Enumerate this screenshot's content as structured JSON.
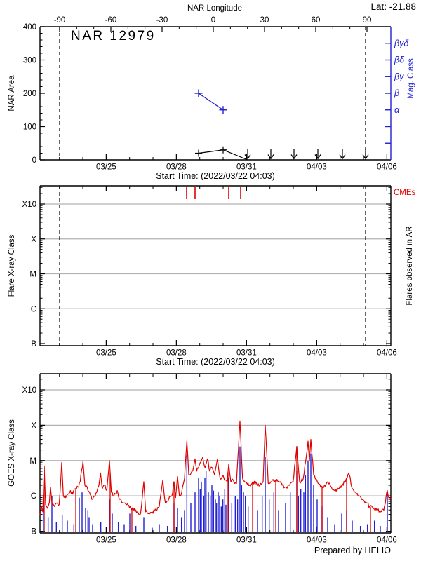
{
  "labels": {
    "lat": "Lat: -21.88",
    "title": "NAR 12979",
    "top_axis_title": "NAR Longitude",
    "nar_area_axis": "NAR Area",
    "mag_class_axis": "Mag. Class",
    "start_time": "Start Time: (2022/03/22 04:03)",
    "flare_axis": "Flare X-ray Class",
    "flares_in_ar_axis": "Flares observed in AR",
    "cmes": "CMEs",
    "goes_axis": "GOES X-ray Class",
    "prepared_by": "Prepared by HELIO"
  },
  "colors": {
    "red": "#e10000",
    "blue": "#2121d2",
    "grid": "#b2b2b2",
    "axis": "#000000"
  },
  "time_axis": {
    "start_label": "Start Time: (2022/03/22 04:03)",
    "days_total": 15,
    "major_ticks": [
      {
        "day": 2.831,
        "label": "03/25"
      },
      {
        "day": 5.831,
        "label": "03/28"
      },
      {
        "day": 8.831,
        "label": "03/31"
      },
      {
        "day": 11.831,
        "label": "04/03"
      },
      {
        "day": 14.831,
        "label": "04/06"
      }
    ],
    "minor_offset_days": 0.831,
    "minor_step_days": 1
  },
  "chart_data": {
    "panel1": {
      "type": "line",
      "title": "NAR 12979",
      "ylabel": "NAR Area",
      "ylim": [
        0,
        400
      ],
      "yticks": [
        0,
        100,
        200,
        300,
        400
      ],
      "y_minor_step": 20,
      "top_axis": {
        "label": "NAR Longitude",
        "ticks": [
          -90,
          -60,
          -30,
          0,
          30,
          60,
          90
        ],
        "minor_step": 10,
        "day_at_minus90": 0.84,
        "day_at_plus90": 13.98
      },
      "dashed_lines_days": [
        0.84,
        13.92
      ],
      "mag_axis": {
        "label": "Mag. Class",
        "ticks": [
          {
            "area": 350,
            "label": "βγδ"
          },
          {
            "area": 300,
            "label": "βδ"
          },
          {
            "area": 250,
            "label": "βγ"
          },
          {
            "area": 200,
            "label": "β"
          },
          {
            "area": 150,
            "label": "α"
          },
          {
            "area": 100,
            "label": ""
          },
          {
            "area": 50,
            "label": ""
          }
        ]
      },
      "mag_points": [
        {
          "day": 6.78,
          "area_equiv": 200,
          "class": "β"
        },
        {
          "day": 7.83,
          "area_equiv": 150,
          "class": "α"
        }
      ],
      "area_points": [
        {
          "day": 6.78,
          "area": 20
        },
        {
          "day": 7.83,
          "area": 30
        },
        {
          "day": 8.88,
          "area": 0
        }
      ],
      "area_upper_limit_days": [
        8.88,
        9.87,
        10.86,
        11.88,
        12.93,
        13.92
      ]
    },
    "panel2": {
      "type": "event-ticks",
      "ylabel": "Flare X-ray Class",
      "right_label": "Flares observed in AR",
      "yticks": [
        {
          "label": "X10",
          "log": -3
        },
        {
          "label": "X",
          "log": -4
        },
        {
          "label": "M",
          "log": -5
        },
        {
          "label": "C",
          "log": -6
        },
        {
          "label": "B",
          "log": -7
        }
      ],
      "gridline_logs": [
        -3,
        -4,
        -5,
        -6
      ],
      "dashed_lines_days": [
        0.84,
        13.92
      ],
      "cme_event_days": [
        6.27,
        6.63,
        8.07,
        8.58
      ],
      "flares": []
    },
    "panel3": {
      "type": "line",
      "ylabel": "GOES X-ray Class",
      "yticks": [
        {
          "label": "X10",
          "log": -3
        },
        {
          "label": "X",
          "log": -4
        },
        {
          "label": "M",
          "log": -5
        },
        {
          "label": "C",
          "log": -6
        },
        {
          "label": "B",
          "log": -7
        }
      ],
      "gridline_logs": [
        -3,
        -4,
        -5,
        -6
      ],
      "noise_amplitude": 0.055,
      "red_series": [
        [
          0.0,
          -6.55
        ],
        [
          0.06,
          -6.3
        ],
        [
          0.12,
          -6.45
        ],
        [
          0.18,
          -5.15
        ],
        [
          0.24,
          -6.25
        ],
        [
          0.32,
          -6.35
        ],
        [
          0.4,
          -6.2
        ],
        [
          0.45,
          -5.75
        ],
        [
          0.52,
          -6.25
        ],
        [
          0.62,
          -6.3
        ],
        [
          0.72,
          -6.2
        ],
        [
          0.82,
          -6.25
        ],
        [
          0.93,
          -5.05
        ],
        [
          1.0,
          -6.0
        ],
        [
          1.1,
          -6.05
        ],
        [
          1.2,
          -5.95
        ],
        [
          1.3,
          -5.85
        ],
        [
          1.4,
          -5.95
        ],
        [
          1.5,
          -5.8
        ],
        [
          1.62,
          -5.75
        ],
        [
          1.72,
          -5.6
        ],
        [
          1.84,
          -5.02
        ],
        [
          1.92,
          -5.7
        ],
        [
          2.02,
          -5.75
        ],
        [
          2.12,
          -5.9
        ],
        [
          2.22,
          -6.1
        ],
        [
          2.32,
          -6.0
        ],
        [
          2.42,
          -5.9
        ],
        [
          2.52,
          -5.7
        ],
        [
          2.59,
          -5.35
        ],
        [
          2.66,
          -5.8
        ],
        [
          2.76,
          -5.7
        ],
        [
          2.86,
          -5.85
        ],
        [
          2.97,
          -5.0
        ],
        [
          3.05,
          -5.9
        ],
        [
          3.16,
          -6.0
        ],
        [
          3.3,
          -5.85
        ],
        [
          3.42,
          -6.1
        ],
        [
          3.56,
          -6.2
        ],
        [
          3.7,
          -6.25
        ],
        [
          3.86,
          -6.3
        ],
        [
          4.0,
          -6.4
        ],
        [
          4.16,
          -6.45
        ],
        [
          4.3,
          -6.5
        ],
        [
          4.44,
          -5.6
        ],
        [
          4.52,
          -6.45
        ],
        [
          4.66,
          -6.5
        ],
        [
          4.8,
          -6.45
        ],
        [
          4.96,
          -6.4
        ],
        [
          5.1,
          -6.3
        ],
        [
          5.25,
          -5.55
        ],
        [
          5.36,
          -6.2
        ],
        [
          5.5,
          -6.1
        ],
        [
          5.64,
          -6.0
        ],
        [
          5.73,
          -5.6
        ],
        [
          5.8,
          -6.05
        ],
        [
          5.88,
          -5.45
        ],
        [
          5.96,
          -6.0
        ],
        [
          6.06,
          -5.9
        ],
        [
          6.18,
          -5.5
        ],
        [
          6.28,
          -4.45
        ],
        [
          6.36,
          -5.4
        ],
        [
          6.46,
          -5.35
        ],
        [
          6.56,
          -5.2
        ],
        [
          6.63,
          -4.95
        ],
        [
          6.7,
          -5.3
        ],
        [
          6.8,
          -5.15
        ],
        [
          6.9,
          -5.0
        ],
        [
          6.96,
          -4.9
        ],
        [
          7.06,
          -5.2
        ],
        [
          7.16,
          -4.95
        ],
        [
          7.26,
          -5.3
        ],
        [
          7.36,
          -5.2
        ],
        [
          7.46,
          -5.4
        ],
        [
          7.59,
          -4.95
        ],
        [
          7.7,
          -5.5
        ],
        [
          7.8,
          -5.45
        ],
        [
          7.92,
          -5.55
        ],
        [
          8.0,
          -5.6
        ],
        [
          8.07,
          -5.1
        ],
        [
          8.16,
          -5.6
        ],
        [
          8.26,
          -5.55
        ],
        [
          8.4,
          -5.65
        ],
        [
          8.55,
          -3.88
        ],
        [
          8.66,
          -5.5
        ],
        [
          8.8,
          -5.6
        ],
        [
          8.96,
          -5.7
        ],
        [
          9.1,
          -5.6
        ],
        [
          9.26,
          -5.65
        ],
        [
          9.4,
          -5.7
        ],
        [
          9.54,
          -5.6
        ],
        [
          9.63,
          -4.0
        ],
        [
          9.76,
          -5.65
        ],
        [
          9.9,
          -5.6
        ],
        [
          10.06,
          -5.55
        ],
        [
          10.2,
          -5.6
        ],
        [
          10.36,
          -5.7
        ],
        [
          10.5,
          -5.75
        ],
        [
          10.66,
          -5.7
        ],
        [
          10.82,
          -5.6
        ],
        [
          10.98,
          -4.6
        ],
        [
          11.1,
          -5.6
        ],
        [
          11.26,
          -5.5
        ],
        [
          11.46,
          -4.45
        ],
        [
          11.52,
          -5.0
        ],
        [
          11.58,
          -4.4
        ],
        [
          11.7,
          -5.4
        ],
        [
          11.86,
          -5.6
        ],
        [
          12.0,
          -5.75
        ],
        [
          12.16,
          -5.7
        ],
        [
          12.3,
          -5.6
        ],
        [
          12.46,
          -5.75
        ],
        [
          12.6,
          -5.85
        ],
        [
          12.76,
          -5.8
        ],
        [
          12.9,
          -5.7
        ],
        [
          13.06,
          -5.6
        ],
        [
          13.2,
          -5.35
        ],
        [
          13.36,
          -5.8
        ],
        [
          13.5,
          -5.9
        ],
        [
          13.66,
          -6.0
        ],
        [
          13.8,
          -6.1
        ],
        [
          13.96,
          -6.2
        ],
        [
          14.1,
          -6.3
        ],
        [
          14.26,
          -6.35
        ],
        [
          14.4,
          -6.4
        ],
        [
          14.56,
          -6.45
        ],
        [
          14.7,
          -6.4
        ],
        [
          14.85,
          -5.85
        ],
        [
          14.95,
          -6.1
        ],
        [
          15.0,
          -6.05
        ]
      ],
      "red_dropout_days": [
        0.18,
        1.53,
        3.0,
        3.93,
        5.73,
        8.04,
        9.09,
        10.08,
        10.98,
        12.06,
        13.11,
        14.13
      ],
      "blue_spikes": [
        [
          0.15,
          -5.95
        ],
        [
          0.35,
          -6.6
        ],
        [
          0.51,
          -6.0
        ],
        [
          0.7,
          -6.75
        ],
        [
          0.95,
          -6.55
        ],
        [
          1.17,
          -6.7
        ],
        [
          1.45,
          -6.8
        ],
        [
          1.68,
          -6.05
        ],
        [
          1.8,
          -5.9
        ],
        [
          1.95,
          -6.35
        ],
        [
          2.05,
          -6.4
        ],
        [
          2.1,
          -6.6
        ],
        [
          2.25,
          -6.8
        ],
        [
          2.6,
          -6.75
        ],
        [
          2.97,
          -6.1
        ],
        [
          3.09,
          -6.5
        ],
        [
          3.35,
          -6.75
        ],
        [
          3.6,
          -6.8
        ],
        [
          3.84,
          -6.5
        ],
        [
          4.1,
          -6.85
        ],
        [
          4.44,
          -6.6
        ],
        [
          4.8,
          -6.9
        ],
        [
          5.1,
          -6.8
        ],
        [
          5.45,
          -6.85
        ],
        [
          5.73,
          -6.2
        ],
        [
          5.88,
          -6.35
        ],
        [
          6.05,
          -6.6
        ],
        [
          6.18,
          -6.4
        ],
        [
          6.28,
          -4.85
        ],
        [
          6.45,
          -6.2
        ],
        [
          6.63,
          -5.9
        ],
        [
          6.78,
          -5.5
        ],
        [
          6.85,
          -5.8
        ],
        [
          6.9,
          -5.6
        ],
        [
          7.0,
          -6.0
        ],
        [
          7.05,
          -5.5
        ],
        [
          7.1,
          -5.3
        ],
        [
          7.2,
          -5.9
        ],
        [
          7.28,
          -6.0
        ],
        [
          7.35,
          -5.7
        ],
        [
          7.42,
          -5.85
        ],
        [
          7.5,
          -6.1
        ],
        [
          7.55,
          -6.2
        ],
        [
          7.62,
          -5.9
        ],
        [
          7.68,
          -6.0
        ],
        [
          7.75,
          -6.3
        ],
        [
          7.82,
          -6.1
        ],
        [
          7.9,
          -5.8
        ],
        [
          7.95,
          -6.25
        ],
        [
          8.07,
          -5.5
        ],
        [
          8.2,
          -6.2
        ],
        [
          8.35,
          -6.0
        ],
        [
          8.45,
          -6.1
        ],
        [
          8.55,
          -4.6
        ],
        [
          8.62,
          -5.7
        ],
        [
          8.7,
          -5.9
        ],
        [
          8.78,
          -6.0
        ],
        [
          8.9,
          -6.3
        ],
        [
          9.1,
          -5.8
        ],
        [
          9.3,
          -6.4
        ],
        [
          9.5,
          -6.0
        ],
        [
          9.63,
          -4.9
        ],
        [
          9.8,
          -6.1
        ],
        [
          10.0,
          -5.9
        ],
        [
          10.2,
          -6.4
        ],
        [
          10.5,
          -6.2
        ],
        [
          10.7,
          -5.9
        ],
        [
          10.98,
          -5.3
        ],
        [
          11.05,
          -6.0
        ],
        [
          11.15,
          -5.8
        ],
        [
          11.28,
          -5.9
        ],
        [
          11.35,
          -5.4
        ],
        [
          11.46,
          -5.0
        ],
        [
          11.58,
          -4.8
        ],
        [
          11.7,
          -5.7
        ],
        [
          11.85,
          -6.1
        ],
        [
          12.06,
          -6.3
        ],
        [
          12.3,
          -6.6
        ],
        [
          12.6,
          -6.8
        ],
        [
          12.9,
          -6.5
        ],
        [
          13.11,
          -6.4
        ],
        [
          13.35,
          -6.7
        ],
        [
          13.7,
          -6.85
        ],
        [
          14.0,
          -6.8
        ],
        [
          14.3,
          -6.7
        ],
        [
          14.55,
          -6.85
        ],
        [
          14.85,
          -5.95
        ]
      ]
    }
  }
}
